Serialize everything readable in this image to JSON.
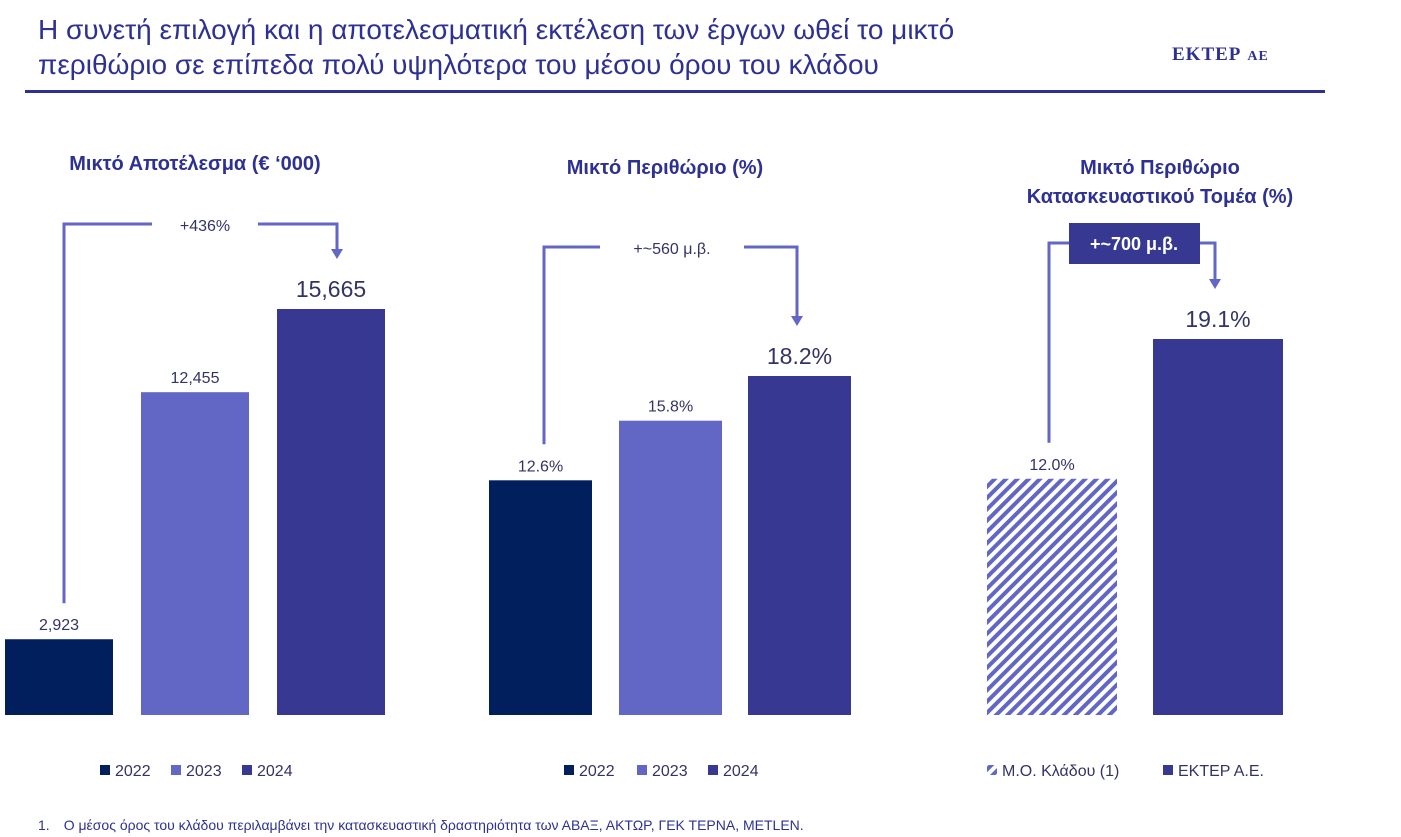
{
  "header": {
    "title_line1": "Η συνετή επιλογή και η αποτελεσματική εκτέλεση των έργων ωθεί το μικτό",
    "title_line2": "περιθώριο σε επίπεδα πολύ υψηλότερα του μέσου όρου του κλάδου",
    "logo_main": "ΕΚΤΕΡ",
    "logo_sub": "ΑΕ"
  },
  "colors": {
    "navy": "#001f5c",
    "periwinkle": "#6266c4",
    "indigo": "#363891",
    "text": "#2e3192",
    "arrow": "#6266c4"
  },
  "chart_data": [
    {
      "type": "bar",
      "title": "Μικτό Αποτέλεσμα (€ ‘000)",
      "categories": [
        "2022",
        "2023",
        "2024"
      ],
      "values": [
        2923,
        12455,
        15665
      ],
      "value_labels": [
        "2,923",
        "12,455",
        "15,665"
      ],
      "annotation": "+436%",
      "legend": [
        "2022",
        "2023",
        "2024"
      ],
      "legend_position": "bottom",
      "grid": false
    },
    {
      "type": "bar",
      "title": "Μικτό Περιθώριο (%)",
      "categories": [
        "2022",
        "2023",
        "2024"
      ],
      "values": [
        12.6,
        15.8,
        18.2
      ],
      "value_labels": [
        "12.6%",
        "15.8%",
        "18.2%"
      ],
      "annotation": "+~560 μ.β.",
      "legend": [
        "2022",
        "2023",
        "2024"
      ],
      "legend_position": "bottom",
      "grid": false
    },
    {
      "type": "bar",
      "title_line1": "Μικτό Περιθώριο",
      "title_line2": "Κατασκευαστικού Τομέα (%)",
      "categories": [
        "Μ.Ο. Κλάδου (1)",
        "ΕΚΤΕΡ Α.Ε."
      ],
      "values": [
        12.0,
        19.1
      ],
      "value_labels": [
        "12.0%",
        "19.1%"
      ],
      "annotation": "+~700 μ.β.",
      "legend": [
        "Μ.Ο. Κλάδου (1)",
        "ΕΚΤΕΡ Α.Ε."
      ],
      "legend_position": "bottom",
      "grid": false
    }
  ],
  "footnote": {
    "number": "1.",
    "text": "Ο μέσος όρος του κλάδου περιλαμβάνει την κατασκευαστική δραστηριότητα των ΑΒΑΞ, ΑΚΤΩΡ, ΓΕΚ ΤΕΡΝΑ, METLEN."
  }
}
